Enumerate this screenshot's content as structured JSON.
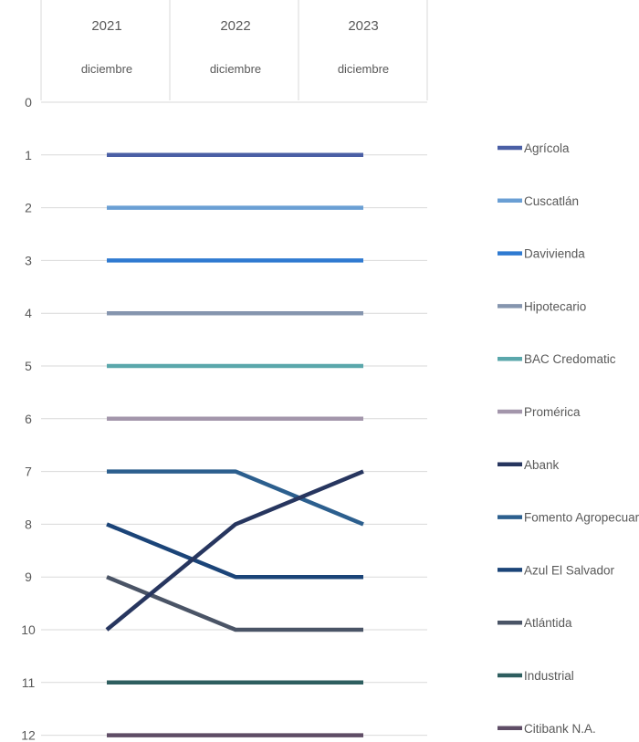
{
  "chart_data": {
    "type": "line",
    "title": "",
    "xlabel": "",
    "ylabel": "",
    "y_inverted": true,
    "ylim": [
      0,
      12
    ],
    "yticks": [
      "0",
      "1",
      "2",
      "3",
      "4",
      "5",
      "6",
      "7",
      "8",
      "9",
      "10",
      "11",
      "12"
    ],
    "categories": [
      {
        "year": "2021",
        "month": "diciembre"
      },
      {
        "year": "2022",
        "month": "diciembre"
      },
      {
        "year": "2023",
        "month": "diciembre"
      }
    ],
    "grid": true,
    "legend_position": "right",
    "series": [
      {
        "name": "Agrícola",
        "values": [
          1,
          1,
          1
        ],
        "color": "#4a5fa5"
      },
      {
        "name": "Cuscatlán",
        "values": [
          2,
          2,
          2
        ],
        "color": "#6a9fd4"
      },
      {
        "name": "Davivienda",
        "values": [
          3,
          3,
          3
        ],
        "color": "#2f7ad1"
      },
      {
        "name": "Hipotecario",
        "values": [
          4,
          4,
          4
        ],
        "color": "#8595ae"
      },
      {
        "name": "BAC Credomatic",
        "values": [
          5,
          5,
          5
        ],
        "color": "#5aa7ab"
      },
      {
        "name": "Promérica",
        "values": [
          6,
          6,
          6
        ],
        "color": "#a396ab"
      },
      {
        "name": "Abank",
        "values": [
          10,
          8,
          7
        ],
        "color": "#27365f"
      },
      {
        "name": "Fomento Agropecuario",
        "values": [
          7,
          7,
          8
        ],
        "color": "#2c5f8e"
      },
      {
        "name": "Azul El Salvador",
        "values": [
          8,
          9,
          9
        ],
        "color": "#1b4478"
      },
      {
        "name": "Atlántida",
        "values": [
          9,
          10,
          10
        ],
        "color": "#4a5466"
      },
      {
        "name": "Industrial",
        "values": [
          11,
          11,
          11
        ],
        "color": "#2e5e5f"
      },
      {
        "name": "Citibank N.A.",
        "values": [
          12,
          12,
          12
        ],
        "color": "#5f4d66"
      }
    ]
  }
}
